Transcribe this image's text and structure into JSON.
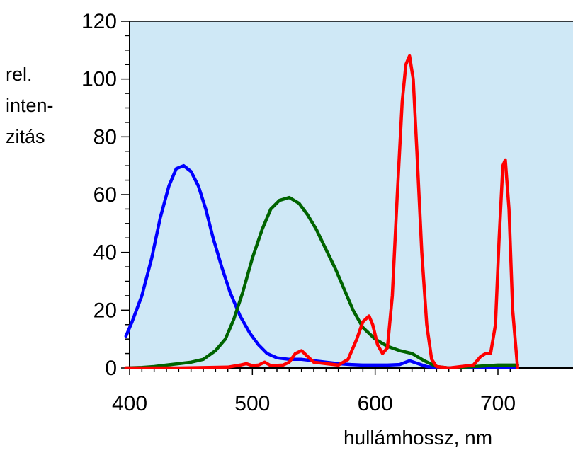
{
  "chart_data": {
    "type": "line",
    "title": "",
    "ylabel_lines": [
      "rel.",
      "inten-",
      "zitás"
    ],
    "xlabel": "hullámhossz, nm",
    "xlim": [
      400,
      716
    ],
    "ylim": [
      0,
      120
    ],
    "xticks": [
      400,
      500,
      600,
      700
    ],
    "xtick_labels": [
      "400",
      "500",
      "600",
      "700"
    ],
    "yticks": [
      0,
      20,
      40,
      60,
      80,
      100,
      120
    ],
    "ytick_labels": [
      "0",
      "20",
      "40",
      "60",
      "80",
      "100",
      "120"
    ],
    "plot_background": "#cfe8f6",
    "grid": false,
    "series": [
      {
        "color": "#0000ff",
        "x": [
          397,
          402,
          410,
          418,
          425,
          432,
          438,
          444,
          450,
          456,
          462,
          468,
          475,
          482,
          490,
          498,
          505,
          512,
          520,
          530,
          540,
          550,
          560,
          570,
          580,
          590,
          600,
          610,
          620,
          628,
          635,
          642,
          650,
          660,
          680,
          700,
          716
        ],
        "y": [
          11,
          16,
          25,
          38,
          52,
          63,
          69,
          70,
          68,
          63,
          55,
          45,
          35,
          26,
          18,
          12,
          8,
          5,
          3.5,
          3,
          3,
          2.5,
          2,
          1.5,
          1.2,
          1,
          1,
          1,
          1.2,
          2.5,
          1.5,
          0.5,
          0.2,
          0,
          0,
          0,
          0
        ]
      },
      {
        "color": "#006400",
        "x": [
          397,
          410,
          420,
          430,
          440,
          450,
          460,
          470,
          478,
          485,
          492,
          500,
          508,
          515,
          522,
          530,
          538,
          545,
          552,
          560,
          568,
          575,
          582,
          590,
          600,
          610,
          620,
          630,
          640,
          650,
          660,
          680,
          700,
          716
        ],
        "y": [
          0,
          0.2,
          0.5,
          1,
          1.5,
          2,
          3,
          6,
          10,
          17,
          26,
          38,
          48,
          55,
          58,
          59,
          57,
          53,
          48,
          41,
          34,
          27,
          20,
          14,
          10,
          7.5,
          6,
          5,
          2.5,
          0.5,
          0,
          0.5,
          1,
          1
        ]
      },
      {
        "color": "#ff0000",
        "x": [
          397,
          440,
          480,
          490,
          495,
          500,
          505,
          510,
          515,
          525,
          530,
          535,
          540,
          545,
          550,
          560,
          570,
          578,
          585,
          590,
          595,
          598,
          602,
          606,
          610,
          614,
          618,
          622,
          625,
          628,
          631,
          634,
          638,
          642,
          646,
          650,
          660,
          680,
          686,
          690,
          694,
          698,
          701,
          704,
          706,
          709,
          712,
          716
        ],
        "y": [
          0,
          0,
          0.3,
          1,
          1.5,
          0.8,
          1,
          2,
          0.8,
          1,
          2,
          5,
          6,
          4,
          2,
          1.5,
          1,
          3,
          10,
          16,
          18,
          15,
          8,
          5,
          7,
          25,
          60,
          92,
          105,
          108,
          100,
          75,
          40,
          15,
          3,
          0.5,
          0,
          1,
          4,
          5,
          5,
          15,
          45,
          70,
          72,
          55,
          20,
          0
        ]
      }
    ]
  }
}
